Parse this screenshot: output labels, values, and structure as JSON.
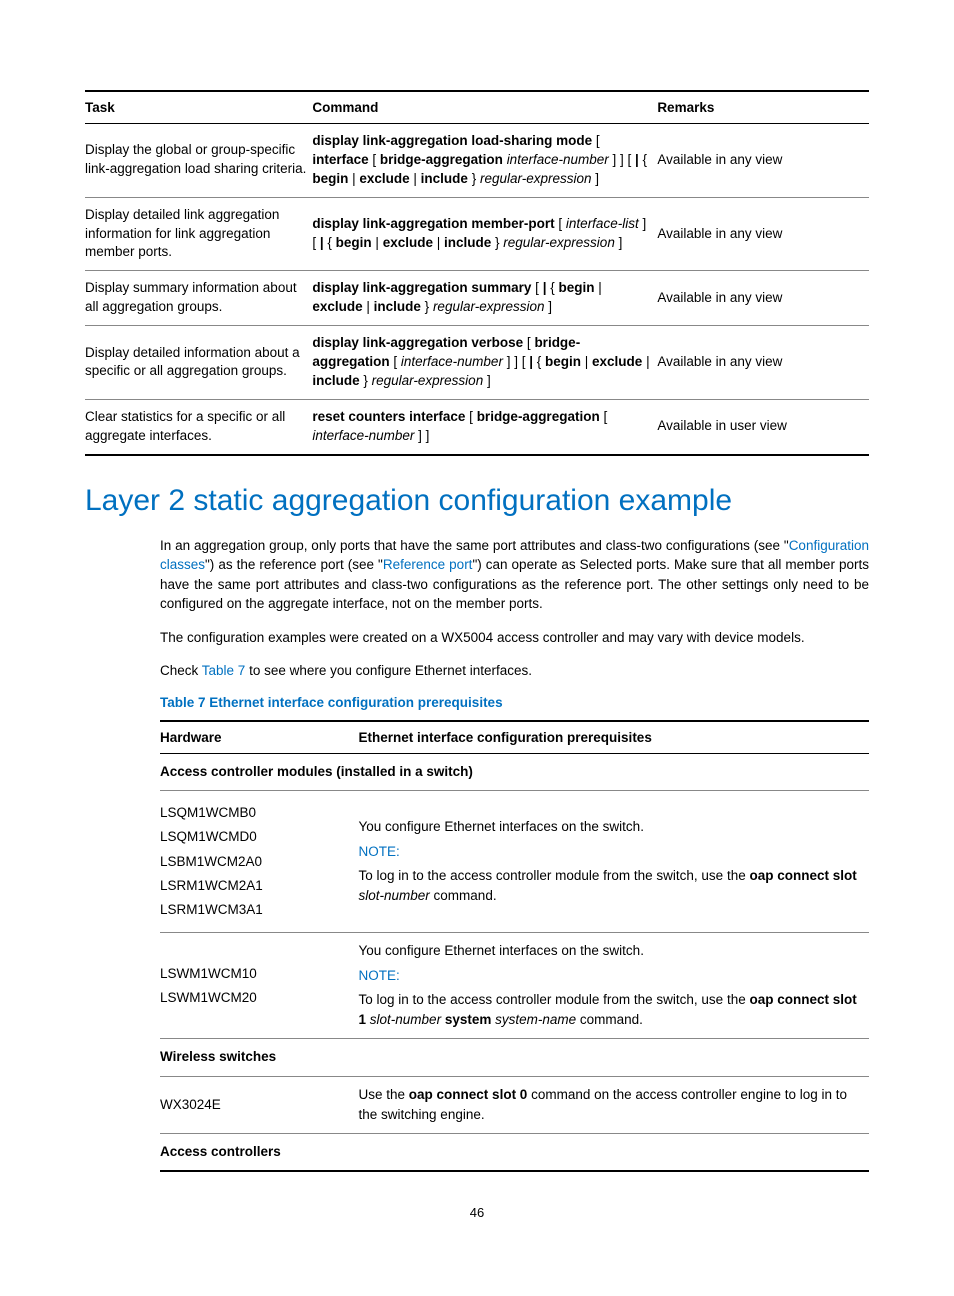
{
  "table1": {
    "headers": [
      "Task",
      "Command",
      "Remarks"
    ],
    "rows": [
      {
        "task": "Display the global or group-specific link-aggregation load sharing criteria.",
        "remarks": "Available in any view"
      },
      {
        "task": "Display detailed link aggregation information for link aggregation member ports.",
        "remarks": "Available in any view"
      },
      {
        "task": "Display summary information about all aggregation groups.",
        "remarks": "Available in any view"
      },
      {
        "task": "Display detailed information about a specific or all aggregation groups.",
        "remarks": "Available in any view"
      },
      {
        "task": "Clear statistics for a specific or all aggregate interfaces.",
        "remarks": "Available in user view"
      }
    ]
  },
  "section": {
    "title": "Layer 2 static aggregation configuration example",
    "para1_a": "In an aggregation group, only ports that have the same port attributes and class-two configurations (see \"",
    "link1": "Configuration classes",
    "para1_b": "\") as the reference port (see \"",
    "link2": "Reference port",
    "para1_c": "\") can operate as Selected ports. Make sure that all member ports have the same port attributes and class-two configurations as the reference port. The other settings only need to be configured on the aggregate interface, not on the member ports.",
    "para2": "The configuration examples were created on a WX5004 access controller and may vary with device models.",
    "para3_a": "Check ",
    "link3": "Table 7",
    "para3_b": " to see where you configure Ethernet interfaces.",
    "table_caption": "Table 7 Ethernet interface configuration prerequisites"
  },
  "table2": {
    "headers": [
      "Hardware",
      "Ethernet interface configuration prerequisites"
    ],
    "group1": "Access controller modules (installed in a switch)",
    "hw_list1": [
      "LSQM1WCMB0",
      "LSQM1WCMD0",
      "LSBM1WCM2A0",
      "LSRM1WCM2A1",
      "LSRM1WCM3A1"
    ],
    "prereq1_line1": "You configure Ethernet interfaces on the switch.",
    "note_label": "NOTE:",
    "prereq1_note_a": "To log in to the access controller module from the switch, use the ",
    "prereq1_note_b": "oap connect slot",
    "prereq1_note_c": " slot-number",
    "prereq1_note_d": " command.",
    "hw_list2": [
      "LSWM1WCM10",
      "LSWM1WCM20"
    ],
    "prereq2_line1": "You configure Ethernet interfaces on the switch.",
    "prereq2_note_a": "To log in to the access controller module from the switch, use the ",
    "prereq2_note_b": "oap connect slot 1",
    "prereq2_note_c": " slot-number ",
    "prereq2_note_d": "system",
    "prereq2_note_e": " system-name",
    "prereq2_note_f": " command.",
    "group2": "Wireless switches",
    "hw3": "WX3024E",
    "prereq3_a": "Use the ",
    "prereq3_b": "oap connect slot 0",
    "prereq3_c": " command on the access controller engine to log in to the switching engine.",
    "group3": "Access controllers"
  },
  "page_number": "46"
}
